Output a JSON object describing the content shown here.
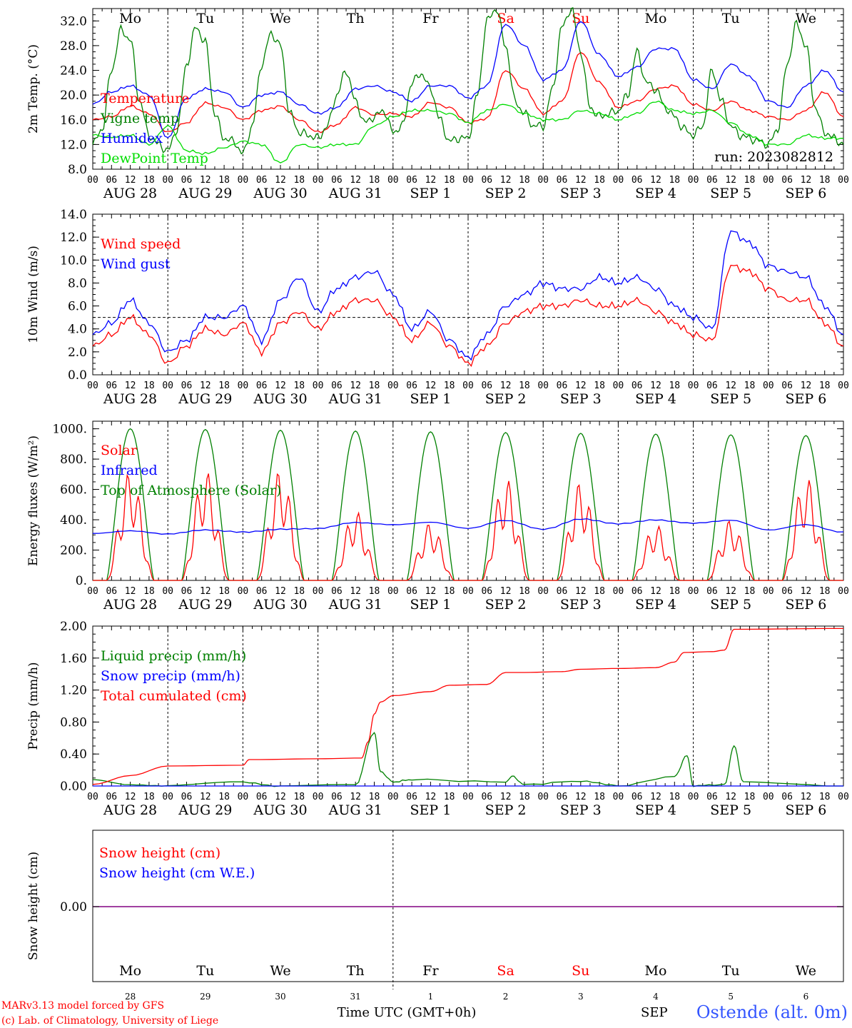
{
  "run_label": "run: 2023082812",
  "station": "Ostende (alt. 0m)",
  "credits": [
    "MARv3.13 model forced by GFS",
    "(c) Lab. of Climatology, University of Liege"
  ],
  "x_axis_title": "Time UTC (GMT+0h)",
  "bottom_partial_label": "SEP",
  "hour_ticks": [
    "00",
    "06",
    "12",
    "18"
  ],
  "final_hour_tick": "00",
  "day_names": [
    "Mo",
    "Tu",
    "We",
    "Th",
    "Fr",
    "Sa",
    "Su",
    "Mo",
    "Tu",
    "We"
  ],
  "weekend_days": [
    5,
    6
  ],
  "date_labels": [
    "AUG 28",
    "AUG 29",
    "AUG 30",
    "AUG 31",
    "SEP  1",
    "SEP  2",
    "SEP  3",
    "SEP  4",
    "SEP  5",
    "SEP  6"
  ],
  "day_numbers": [
    "28",
    "29",
    "30",
    "31",
    "1",
    "2",
    "3",
    "4",
    "5",
    "6"
  ],
  "colors": {
    "red": "#ff0000",
    "green": "#008000",
    "blue": "#0000ff",
    "lightgreen": "#00dd00",
    "purple": "#800080",
    "weekend": "#ff0000"
  },
  "chart_data": [
    {
      "type": "line",
      "ylabel": "2m Temp. (°C)",
      "ylim": [
        8,
        34
      ],
      "yticks": [
        "8.0",
        "12.0",
        "16.0",
        "20.0",
        "24.0",
        "28.0",
        "32.0"
      ],
      "yticks_values": [
        8,
        12,
        16,
        20,
        24,
        28,
        32
      ],
      "x_unit": "hours since AUG 28 00 UTC",
      "series": [
        {
          "name": "Temperature",
          "color": "red",
          "x": [
            0,
            6,
            12,
            18,
            24,
            30,
            36,
            42,
            48,
            54,
            60,
            66,
            72,
            78,
            84,
            90,
            96,
            102,
            108,
            114,
            120,
            126,
            132,
            138,
            144,
            150,
            156,
            162,
            168,
            174,
            180,
            186,
            192,
            198,
            204,
            210,
            216,
            222,
            228,
            234,
            240
          ],
          "y": [
            16.0,
            16.5,
            18.2,
            17.0,
            14.0,
            15.5,
            18.7,
            18.0,
            16.0,
            17.5,
            18.2,
            16.0,
            14.0,
            15.2,
            18.0,
            16.8,
            17.0,
            16.5,
            18.8,
            18.0,
            15.5,
            16.2,
            24.0,
            21.0,
            17.0,
            19.0,
            27.0,
            22.0,
            18.0,
            19.0,
            21.0,
            21.5,
            18.5,
            17.5,
            19.0,
            17.5,
            16.5,
            16.0,
            17.5,
            20.5,
            16.5
          ]
        },
        {
          "name": "Vigne temp",
          "color": "green",
          "x": [
            0,
            3,
            6,
            9,
            12,
            15,
            18,
            21,
            24,
            27,
            30,
            33,
            36,
            39,
            42,
            45,
            48,
            51,
            54,
            57,
            60,
            63,
            66,
            69,
            72,
            75,
            78,
            81,
            84,
            87,
            90,
            93,
            96,
            99,
            102,
            105,
            108,
            111,
            114,
            117,
            120,
            123,
            126,
            129,
            132,
            135,
            138,
            141,
            144,
            147,
            150,
            153,
            156,
            159,
            162,
            165,
            168,
            171,
            174,
            177,
            180,
            183,
            186,
            189,
            192,
            195,
            198,
            201,
            204,
            207,
            210,
            213,
            216,
            219,
            222,
            225,
            228,
            231,
            234,
            237,
            240
          ],
          "y": [
            12.0,
            14.5,
            24.0,
            30.5,
            29.0,
            19.0,
            13.5,
            12.0,
            11.0,
            14.5,
            25.0,
            31.0,
            28.5,
            17.0,
            13.0,
            12.5,
            10.5,
            15.0,
            25.0,
            30.0,
            28.0,
            17.0,
            14.0,
            13.5,
            13.0,
            15.0,
            20.0,
            24.0,
            19.0,
            15.5,
            16.5,
            17.5,
            14.0,
            15.0,
            22.0,
            23.5,
            21.0,
            16.0,
            12.5,
            13.0,
            13.0,
            20.0,
            32.0,
            34.0,
            28.0,
            19.0,
            17.0,
            15.0,
            15.0,
            21.0,
            31.0,
            34.0,
            27.0,
            18.0,
            16.5,
            17.0,
            17.5,
            20.0,
            27.0,
            22.0,
            21.0,
            18.0,
            16.5,
            14.5,
            13.5,
            15.0,
            24.0,
            19.0,
            15.0,
            13.5,
            13.0,
            12.5,
            12.0,
            14.5,
            25.0,
            31.5,
            28.0,
            18.0,
            14.0,
            13.0,
            12.0
          ]
        },
        {
          "name": "Humidex",
          "color": "blue",
          "x": [
            0,
            6,
            12,
            18,
            24,
            30,
            36,
            42,
            48,
            54,
            60,
            66,
            72,
            78,
            84,
            90,
            96,
            102,
            108,
            114,
            120,
            126,
            132,
            138,
            144,
            150,
            156,
            162,
            168,
            174,
            180,
            186,
            192,
            198,
            204,
            210,
            216,
            222,
            228,
            234,
            240
          ],
          "y": [
            18.5,
            20.5,
            21.5,
            20.0,
            13.0,
            19.5,
            21.0,
            20.5,
            18.0,
            20.0,
            20.5,
            18.5,
            17.0,
            18.0,
            21.0,
            21.5,
            20.5,
            19.0,
            21.5,
            21.5,
            19.5,
            21.5,
            31.5,
            28.0,
            22.5,
            24.0,
            32.0,
            26.5,
            23.0,
            24.5,
            27.5,
            27.5,
            22.5,
            21.0,
            25.0,
            23.0,
            19.0,
            18.0,
            21.5,
            24.0,
            20.5
          ]
        },
        {
          "name": "DewPoint Temp",
          "color": "lightgreen",
          "x": [
            0,
            6,
            12,
            18,
            24,
            30,
            36,
            42,
            48,
            54,
            60,
            66,
            72,
            78,
            84,
            90,
            96,
            102,
            108,
            114,
            120,
            126,
            132,
            138,
            144,
            150,
            156,
            162,
            168,
            174,
            180,
            186,
            192,
            198,
            204,
            210,
            216,
            222,
            228,
            234,
            240
          ],
          "y": [
            13.5,
            13.2,
            13.5,
            12.0,
            15.0,
            11.0,
            10.5,
            11.5,
            12.5,
            12.0,
            9.0,
            12.0,
            11.5,
            12.0,
            12.0,
            15.0,
            16.5,
            17.5,
            17.5,
            17.0,
            15.5,
            17.5,
            18.5,
            17.0,
            16.0,
            16.0,
            17.5,
            17.0,
            16.0,
            17.0,
            19.0,
            17.5,
            17.0,
            17.5,
            15.5,
            13.5,
            12.0,
            12.0,
            13.5,
            13.0,
            13.0
          ]
        }
      ]
    },
    {
      "type": "line",
      "ylabel": "10m Wind (m/s)",
      "ylim": [
        0,
        14
      ],
      "yticks": [
        "0.0",
        "2.0",
        "4.0",
        "6.0",
        "8.0",
        "10.0",
        "12.0",
        "14.0"
      ],
      "yticks_values": [
        0,
        2,
        4,
        6,
        8,
        10,
        12,
        14
      ],
      "reference_line": 5,
      "x_unit": "hours since AUG 28 00 UTC",
      "series": [
        {
          "name": "Wind speed",
          "color": "red",
          "x": [
            0,
            6,
            12,
            18,
            24,
            30,
            36,
            42,
            48,
            54,
            60,
            66,
            72,
            78,
            84,
            90,
            96,
            102,
            108,
            114,
            120,
            126,
            132,
            138,
            144,
            150,
            156,
            162,
            168,
            174,
            180,
            186,
            192,
            198,
            204,
            210,
            216,
            222,
            228,
            234,
            240
          ],
          "y": [
            2.5,
            3.5,
            5.0,
            3.5,
            1.0,
            2.5,
            4.0,
            3.5,
            4.5,
            2.0,
            4.5,
            5.5,
            4.0,
            5.5,
            6.5,
            6.5,
            5.0,
            3.0,
            4.5,
            2.5,
            1.0,
            2.5,
            4.5,
            5.5,
            6.0,
            6.0,
            6.5,
            6.0,
            6.0,
            6.5,
            5.5,
            4.5,
            3.5,
            3.0,
            9.5,
            9.0,
            7.5,
            6.5,
            6.5,
            4.5,
            2.5
          ]
        },
        {
          "name": "Wind gust",
          "color": "blue",
          "x": [
            0,
            6,
            12,
            18,
            24,
            30,
            36,
            42,
            48,
            54,
            60,
            66,
            72,
            78,
            84,
            90,
            96,
            102,
            108,
            114,
            120,
            126,
            132,
            138,
            144,
            150,
            156,
            162,
            168,
            174,
            180,
            186,
            192,
            198,
            204,
            210,
            216,
            222,
            228,
            234,
            240
          ],
          "y": [
            3.5,
            4.5,
            6.5,
            4.5,
            2.0,
            3.0,
            5.0,
            5.0,
            6.0,
            3.0,
            6.5,
            8.5,
            5.5,
            7.5,
            8.5,
            9.0,
            7.0,
            4.0,
            5.5,
            3.0,
            1.5,
            3.5,
            6.0,
            7.0,
            8.0,
            7.5,
            7.5,
            8.5,
            8.0,
            8.5,
            7.5,
            6.0,
            5.0,
            4.0,
            12.5,
            11.5,
            9.5,
            9.0,
            8.5,
            6.0,
            3.5
          ]
        }
      ]
    },
    {
      "type": "line",
      "ylabel": "Energy fluxes (W/m²)",
      "ylim": [
        0,
        1050
      ],
      "yticks": [
        "0.",
        "200.",
        "400.",
        "600.",
        "800.",
        "1000."
      ],
      "yticks_values": [
        0,
        200,
        400,
        600,
        800,
        1000
      ],
      "x_unit": "hours since AUG 28 00 UTC",
      "series": [
        {
          "name": "Solar",
          "color": "red",
          "daily_peaks": [
            720,
            730,
            730,
            460,
            380,
            680,
            650,
            370,
            400,
            690
          ],
          "daily_profile": "cloudy variable"
        },
        {
          "name": "Infrared",
          "color": "blue",
          "x": [
            0,
            12,
            24,
            36,
            48,
            60,
            72,
            84,
            96,
            108,
            120,
            132,
            144,
            156,
            168,
            180,
            192,
            204,
            216,
            228,
            240
          ],
          "y": [
            310,
            330,
            305,
            330,
            320,
            340,
            340,
            380,
            370,
            385,
            340,
            395,
            340,
            405,
            370,
            400,
            380,
            395,
            330,
            370,
            320
          ]
        },
        {
          "name": "Top of Atmosphere (Solar)",
          "color": "green",
          "daily_peaks": [
            1000,
            995,
            990,
            985,
            980,
            975,
            970,
            965,
            960,
            955
          ],
          "sunrise_hour": 4.5,
          "sunset_hour": 19.5
        }
      ]
    },
    {
      "type": "line",
      "ylabel": "Precip (mm/h)",
      "ylim": [
        0,
        2.0
      ],
      "yticks": [
        "0.00",
        "0.40",
        "0.80",
        "1.20",
        "1.60",
        "2.00"
      ],
      "yticks_values": [
        0,
        0.4,
        0.8,
        1.2,
        1.6,
        2.0
      ],
      "x_unit": "hours since AUG 28 00 UTC",
      "series": [
        {
          "name": "Liquid precip (mm/h)",
          "color": "green",
          "x": [
            0,
            12,
            24,
            48,
            60,
            84,
            90,
            92,
            96,
            102,
            132,
            134,
            138,
            156,
            168,
            186,
            190,
            192,
            202,
            205,
            208,
            240
          ],
          "y": [
            0.08,
            0.02,
            0.0,
            0.05,
            0.0,
            0.01,
            0.67,
            0.18,
            0.05,
            0.08,
            0.05,
            0.12,
            0.02,
            0.06,
            0.0,
            0.12,
            0.38,
            0.0,
            0.02,
            0.5,
            0.05,
            0.0
          ]
        },
        {
          "name": "Snow precip (mm/h)",
          "color": "blue",
          "x": [
            0,
            240
          ],
          "y": [
            0,
            0
          ]
        },
        {
          "name": "Total cumulated (cm)",
          "color": "red",
          "x": [
            0,
            12,
            24,
            48,
            50,
            72,
            86,
            88,
            90,
            92,
            96,
            108,
            114,
            126,
            132,
            138,
            150,
            156,
            168,
            180,
            186,
            189,
            198,
            202,
            205,
            240
          ],
          "y": [
            0.02,
            0.13,
            0.25,
            0.26,
            0.33,
            0.34,
            0.35,
            0.55,
            0.9,
            1.05,
            1.13,
            1.18,
            1.26,
            1.27,
            1.42,
            1.42,
            1.43,
            1.46,
            1.47,
            1.48,
            1.55,
            1.67,
            1.68,
            1.7,
            1.96,
            1.97
          ]
        }
      ]
    },
    {
      "type": "line",
      "ylabel": "Snow height (cm)",
      "yticks": [
        "0.00"
      ],
      "yticks_values": [
        0
      ],
      "ylim": [
        -1,
        1
      ],
      "series": [
        {
          "name": "Snow height (cm)",
          "color": "red",
          "x": [
            0,
            240
          ],
          "y": [
            0,
            0
          ]
        },
        {
          "name": "Snow height (cm W.E.)",
          "color": "blue",
          "x": [
            0,
            240
          ],
          "y": [
            0,
            0
          ]
        }
      ]
    }
  ]
}
